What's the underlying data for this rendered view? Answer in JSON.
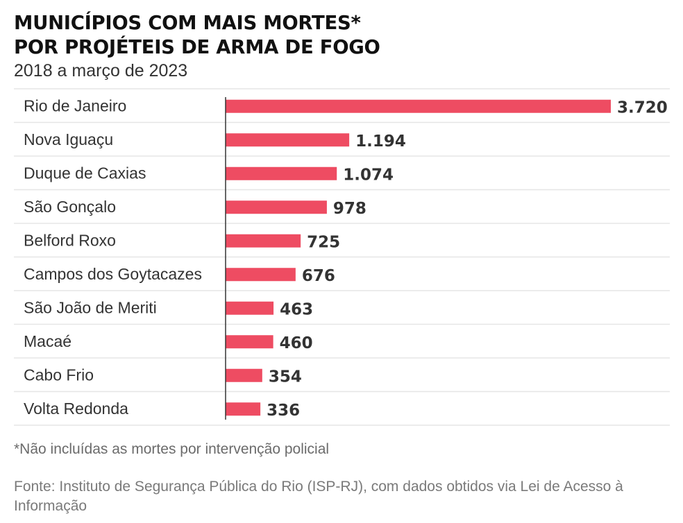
{
  "title_line1": "MUNICÍPIOS COM MAIS MORTES*",
  "title_line2": "POR PROJÉTEIS DE ARMA DE FOGO",
  "subtitle": "2018 a março de 2023",
  "footnote": "*Não incluídas as mortes por intervenção policial",
  "source": "Fonte: Instituto de Segurança Pública do Rio (ISP-RJ), com dados obtidos via Lei de Acesso à Informação",
  "colors": {
    "bar": "#ee4c62",
    "rule": "#e6e6e6",
    "axis": "#333333"
  },
  "chart_data": {
    "type": "bar",
    "orientation": "horizontal",
    "title": "MUNICÍPIOS COM MAIS MORTES* POR PROJÉTEIS DE ARMA DE FOGO",
    "subtitle": "2018 a março de 2023",
    "categories": [
      "Rio de Janeiro",
      "Nova Iguaçu",
      "Duque de Caxias",
      "São Gonçalo",
      "Belford Roxo",
      "Campos dos Goytacazes",
      "São João de Meriti",
      "Macaé",
      "Cabo Frio",
      "Volta Redonda"
    ],
    "values": [
      3720,
      1194,
      1074,
      978,
      725,
      676,
      463,
      460,
      354,
      336
    ],
    "value_labels": [
      "3.720",
      "1.194",
      "1.074",
      "978",
      "725",
      "676",
      "463",
      "460",
      "354",
      "336"
    ],
    "xlim": [
      0,
      3720
    ],
    "grid": false,
    "legend": "none"
  }
}
